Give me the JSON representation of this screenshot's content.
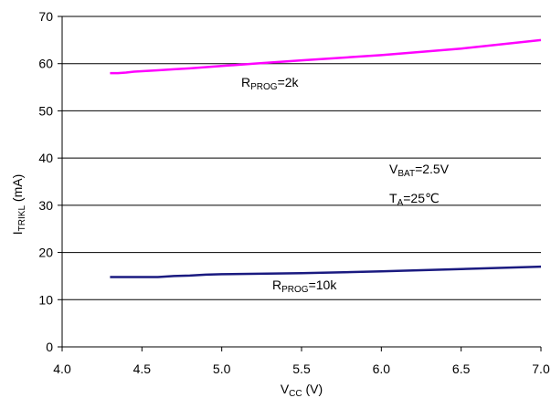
{
  "chart_data": {
    "type": "line",
    "title": "",
    "xlabel": {
      "main": "V",
      "sub": "CC",
      "rest": " (V)"
    },
    "ylabel": {
      "main": "I",
      "sub": "TRIKL",
      "rest": " (mA)"
    },
    "xlim": [
      4.0,
      7.0
    ],
    "ylim": [
      0,
      70
    ],
    "xticks": [
      4.0,
      4.5,
      5.0,
      5.5,
      6.0,
      6.5,
      7.0
    ],
    "xtick_labels": [
      "4.0",
      "4.5",
      "5.0",
      "5.5",
      "6.0",
      "6.5",
      "7.0"
    ],
    "yticks": [
      0,
      10,
      20,
      30,
      40,
      50,
      60,
      70
    ],
    "ytick_labels": [
      "0",
      "10",
      "20",
      "30",
      "40",
      "50",
      "60",
      "70"
    ],
    "grid": "horizontal",
    "series": [
      {
        "label": {
          "main": "R",
          "sub": "PROG",
          "rest": "=2k"
        },
        "color": "#ff00ff",
        "x": [
          4.3,
          4.35,
          4.4,
          4.45,
          4.5,
          4.6,
          4.7,
          4.8,
          5.0,
          5.2,
          5.5,
          6.0,
          6.5,
          7.0
        ],
        "y": [
          58.0,
          58.0,
          58.1,
          58.3,
          58.4,
          58.6,
          58.8,
          59.0,
          59.5,
          60.0,
          60.7,
          61.8,
          63.2,
          65.0
        ]
      },
      {
        "label": {
          "main": "R",
          "sub": "PROG",
          "rest": "=10k"
        },
        "color": "#1a1a80",
        "x": [
          4.3,
          4.4,
          4.5,
          4.6,
          4.7,
          4.8,
          4.9,
          5.0,
          5.5,
          6.0,
          6.5,
          7.0
        ],
        "y": [
          14.8,
          14.8,
          14.8,
          14.8,
          15.0,
          15.1,
          15.3,
          15.4,
          15.6,
          16.0,
          16.5,
          17.0
        ]
      }
    ],
    "annotations": [
      {
        "main": "V",
        "sub": "BAT",
        "rest": "=2.5V"
      },
      {
        "main": "T",
        "sub": "A",
        "rest": "=25℃"
      }
    ]
  }
}
